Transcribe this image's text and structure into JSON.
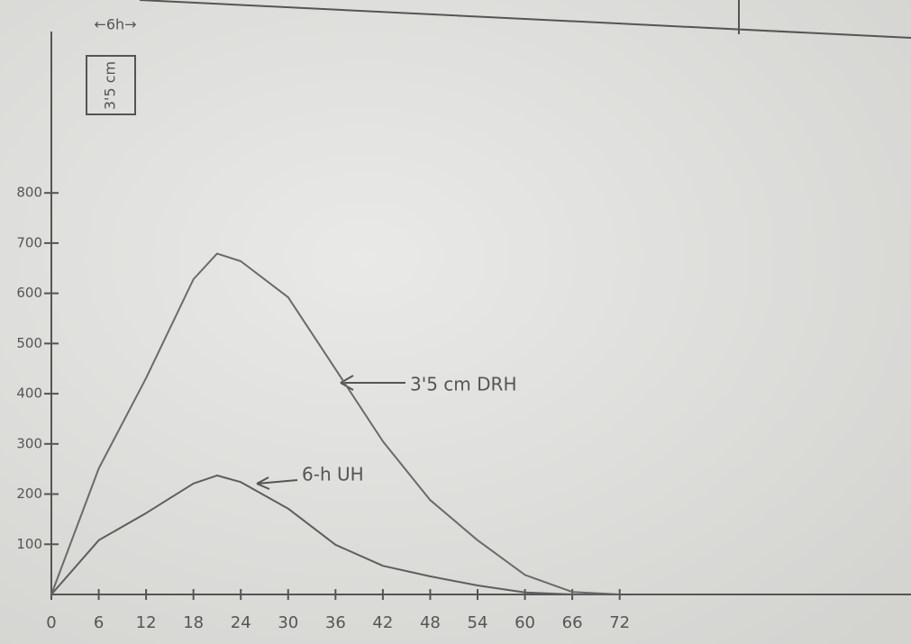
{
  "chart_data": {
    "type": "line",
    "annotations": [
      "←6h→",
      "3'5 cm"
    ],
    "x": [
      0,
      6,
      12,
      18,
      21,
      24,
      30,
      36,
      42,
      48,
      54,
      60,
      66,
      72
    ],
    "series": [
      {
        "name": "3'5 cm DRH",
        "color": "#6a6a6a",
        "values": [
          0,
          251,
          431,
          628,
          679,
          664,
          592,
          449,
          305,
          188,
          108,
          39,
          5,
          0
        ]
      },
      {
        "name": "6-h UH",
        "color": "#5e5e5e",
        "values": [
          0,
          108,
          162,
          221,
          237,
          224,
          171,
          99,
          57,
          36,
          18,
          4,
          0,
          0
        ]
      }
    ],
    "xlim": [
      0,
      108
    ],
    "ylim": [
      0,
      1100
    ],
    "xticks": [
      0,
      6,
      12,
      18,
      24,
      30,
      36,
      42,
      48,
      54,
      60,
      66,
      72
    ],
    "yticks": [
      100,
      200,
      300,
      400,
      500,
      600,
      700,
      800
    ]
  }
}
